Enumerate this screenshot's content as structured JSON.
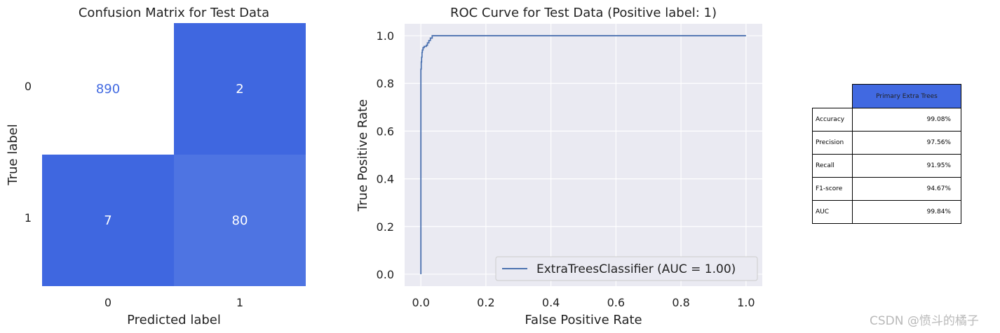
{
  "chart_data": [
    {
      "type": "heatmap",
      "title": "Confusion Matrix for Test Data",
      "xlabel": "Predicted label",
      "ylabel": "True label",
      "x_ticks": [
        "0",
        "1"
      ],
      "y_ticks": [
        "0",
        "1"
      ],
      "values": [
        [
          890,
          2
        ],
        [
          7,
          80
        ]
      ],
      "colors": {
        "max": "#ffffff",
        "cell_dark": "#3f67e0",
        "cell_light": "#4e74e2",
        "text_light_cell": "#4169e1",
        "text_dark_cell": "#ffffff"
      }
    },
    {
      "type": "line",
      "title": "ROC Curve for Test Data (Positive label: 1)",
      "xlabel": "False Positive Rate",
      "ylabel": "True Positive Rate",
      "xlim": [
        -0.05,
        1.05
      ],
      "ylim": [
        -0.05,
        1.05
      ],
      "x_ticks": [
        "0.0",
        "0.2",
        "0.4",
        "0.6",
        "0.8",
        "1.0"
      ],
      "y_ticks": [
        "0.0",
        "0.2",
        "0.4",
        "0.6",
        "0.8",
        "1.0"
      ],
      "grid": true,
      "legend_position": "lower-right",
      "series": [
        {
          "name": "ExtraTreesClassifier (AUC = 1.00)",
          "color": "#4c72b0",
          "x": [
            0.0,
            0.0,
            0.0011,
            0.0011,
            0.0022,
            0.0022,
            0.0034,
            0.0034,
            0.0045,
            0.0045,
            0.0067,
            0.0067,
            0.0101,
            0.0101,
            0.0168,
            0.0168,
            0.0202,
            0.0202,
            0.0247,
            0.0247,
            0.0292,
            0.0292,
            0.0348,
            0.0348,
            1.0
          ],
          "y": [
            0.0,
            0.86,
            0.86,
            0.89,
            0.89,
            0.91,
            0.91,
            0.93,
            0.93,
            0.94,
            0.94,
            0.95,
            0.95,
            0.955,
            0.955,
            0.96,
            0.96,
            0.97,
            0.97,
            0.98,
            0.98,
            0.99,
            0.99,
            1.0,
            1.0
          ]
        }
      ],
      "colors": {
        "background": "#eaeaf2",
        "grid": "#ffffff"
      }
    },
    {
      "type": "table",
      "columns": [
        "Primary Extra Trees"
      ],
      "rows": [
        {
          "label": "Accuracy",
          "value": "99.08%"
        },
        {
          "label": "Precision",
          "value": "97.56%"
        },
        {
          "label": "Recall",
          "value": "91.95%"
        },
        {
          "label": "F1-score",
          "value": "94.67%"
        },
        {
          "label": "AUC",
          "value": "99.84%"
        }
      ],
      "colors": {
        "header": "#4169e1"
      }
    }
  ],
  "watermark": "CSDN @愤斗的橘子"
}
